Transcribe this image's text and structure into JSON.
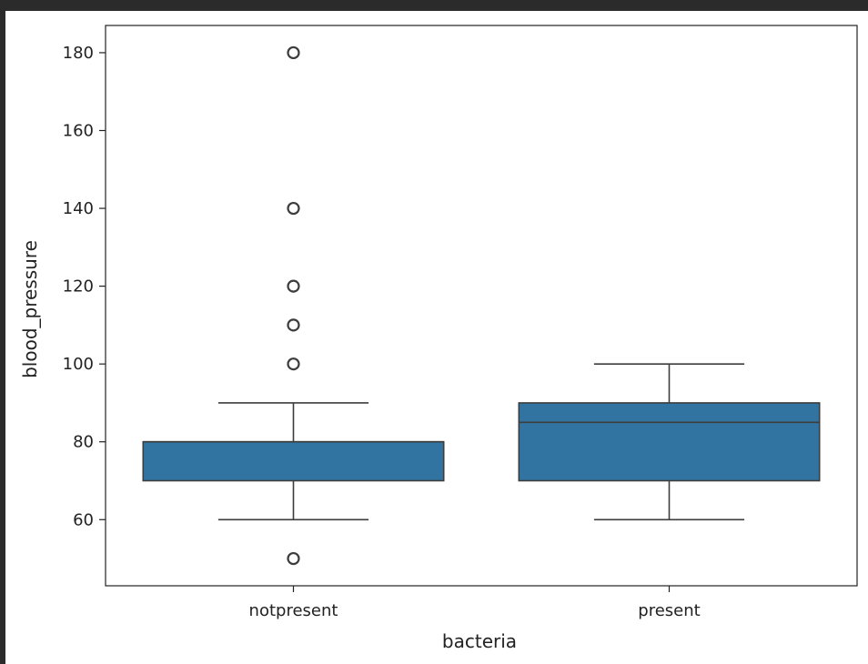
{
  "chart_data": {
    "type": "box",
    "xlabel": "bacteria",
    "ylabel": "blood_pressure",
    "categories": [
      "notpresent",
      "present"
    ],
    "ylim": [
      43,
      187
    ],
    "yticks": [
      60,
      80,
      100,
      120,
      140,
      160,
      180
    ],
    "grid": false,
    "colors": {
      "box_fill": "#3274a1",
      "line": "#3d3d3d",
      "outlier_edge": "#3d3d3d"
    },
    "boxes": [
      {
        "category": "notpresent",
        "whisker_low": 60,
        "q1": 70,
        "median": 80,
        "q3": 80,
        "whisker_high": 90,
        "outliers": [
          50,
          100,
          110,
          120,
          140,
          180
        ]
      },
      {
        "category": "present",
        "whisker_low": 60,
        "q1": 70,
        "median": 85,
        "q3": 90,
        "whisker_high": 100,
        "outliers": []
      }
    ]
  }
}
